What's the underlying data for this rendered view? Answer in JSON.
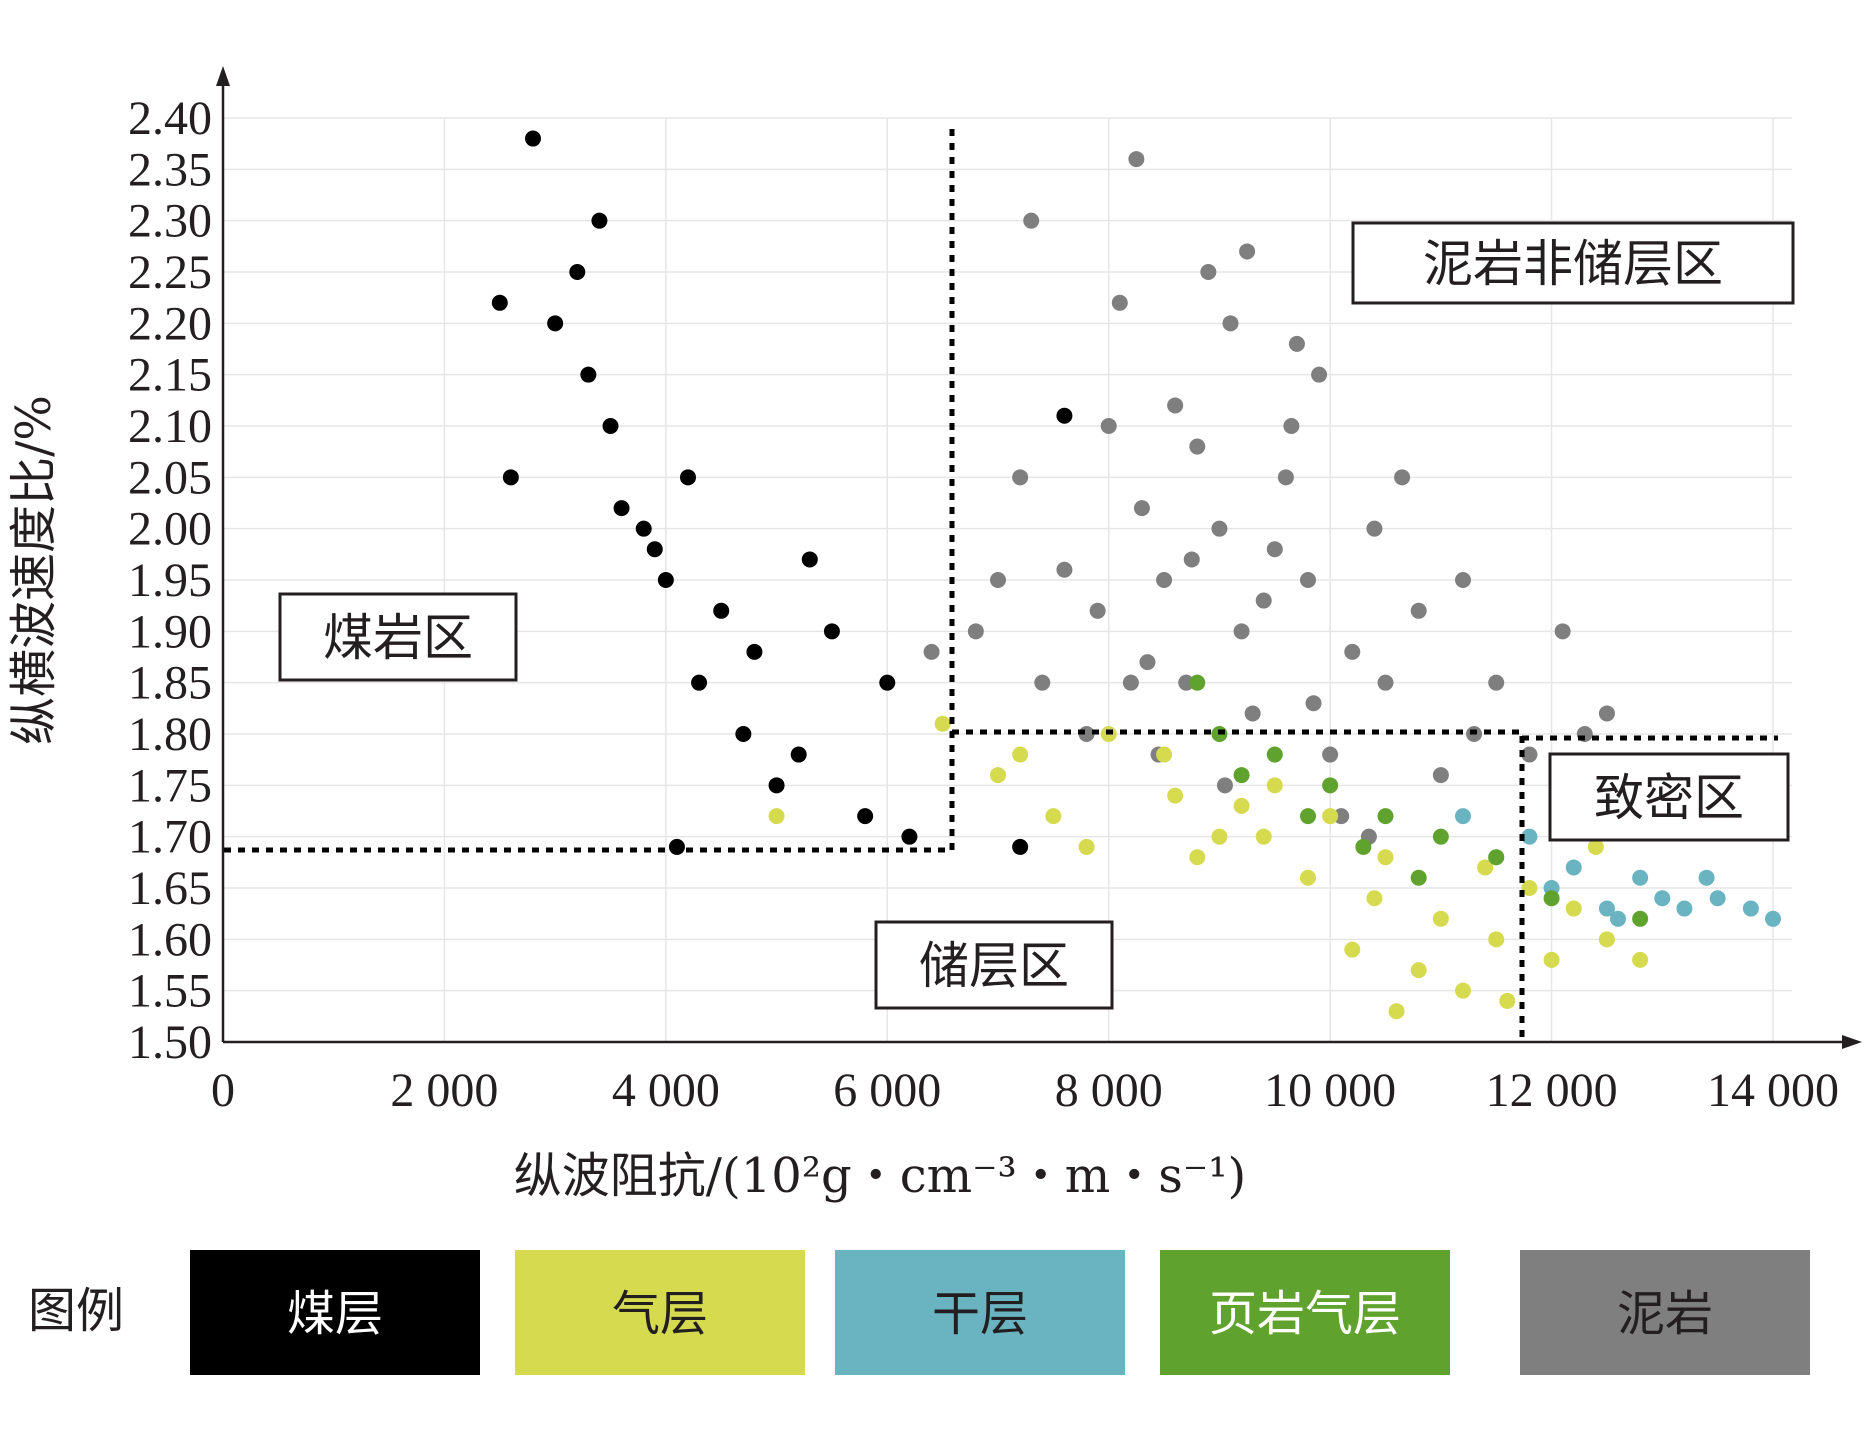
{
  "chart_data": {
    "type": "scatter",
    "xlabel": "纵波阻抗/(10²g・cm⁻³・m・s⁻¹)",
    "ylabel": "纵横波速度比/%",
    "xlim": [
      0,
      14200
    ],
    "ylim": [
      1.5,
      2.4
    ],
    "x_ticks": [
      0,
      2000,
      4000,
      6000,
      8000,
      10000,
      12000,
      14000
    ],
    "x_tick_labels": [
      "0",
      "2 000",
      "4 000",
      "6 000",
      "8 000",
      "10 000",
      "12 000",
      "14 000"
    ],
    "y_ticks": [
      1.5,
      1.55,
      1.6,
      1.65,
      1.7,
      1.75,
      1.8,
      1.85,
      1.9,
      1.95,
      2.0,
      2.05,
      2.1,
      2.15,
      2.2,
      2.25,
      2.3,
      2.35,
      2.4
    ],
    "y_tick_labels": [
      "1.50",
      "1.55",
      "1.60",
      "1.65",
      "1.70",
      "1.75",
      "1.80",
      "1.85",
      "1.90",
      "1.95",
      "2.00",
      "2.05",
      "2.10",
      "2.15",
      "2.20",
      "2.25",
      "2.30",
      "2.35",
      "2.40"
    ],
    "grid": true,
    "legend_position": "bottom",
    "legend_title": "图例",
    "series": [
      {
        "name": "泥岩",
        "color": "#7f7f7f",
        "x": [
          9000,
          8500,
          9500,
          8800,
          9200,
          9800,
          8300,
          10200,
          9600,
          8700,
          7600,
          9300,
          10500,
          8000,
          9900,
          9100,
          10800,
          11300,
          7200,
          8200,
          9400,
          10000,
          11500,
          12500,
          8900,
          9700,
          10400,
          8600,
          7000,
          6800,
          6400,
          7400,
          7800,
          9050,
          8450,
          10100,
          11000,
          11800,
          12100,
          8100,
          7300,
          9250,
          9650,
          10650,
          8750,
          8350,
          9850,
          10350,
          11200,
          12300,
          7900,
          8250
        ],
        "y": [
          2.0,
          1.95,
          1.98,
          2.08,
          1.9,
          1.95,
          2.02,
          1.88,
          2.05,
          1.85,
          1.96,
          1.82,
          1.85,
          2.1,
          2.15,
          2.2,
          1.92,
          1.8,
          2.05,
          1.85,
          1.93,
          1.78,
          1.85,
          1.82,
          2.25,
          2.18,
          2.0,
          2.12,
          1.95,
          1.9,
          1.88,
          1.85,
          1.8,
          1.75,
          1.78,
          1.72,
          1.76,
          1.78,
          1.9,
          2.22,
          2.3,
          2.27,
          2.1,
          2.05,
          1.97,
          1.87,
          1.83,
          1.7,
          1.95,
          1.8,
          1.92,
          2.36
        ]
      },
      {
        "name": "气层",
        "color": "#d6da4e",
        "x": [
          10500,
          11000,
          11500,
          12000,
          10000,
          9500,
          9000,
          8500,
          11200,
          11800,
          12500,
          10800,
          9800,
          9200,
          8800,
          8000,
          7500,
          7000,
          6500,
          5000,
          10200,
          11400,
          12200,
          12800,
          10600,
          9400,
          8600,
          7800,
          7200,
          11600,
          12400,
          10400
        ],
        "y": [
          1.68,
          1.62,
          1.6,
          1.58,
          1.72,
          1.75,
          1.7,
          1.78,
          1.55,
          1.65,
          1.6,
          1.57,
          1.66,
          1.73,
          1.68,
          1.8,
          1.72,
          1.76,
          1.81,
          1.72,
          1.59,
          1.67,
          1.63,
          1.58,
          1.53,
          1.7,
          1.74,
          1.69,
          1.78,
          1.54,
          1.69,
          1.64
        ]
      },
      {
        "name": "干层",
        "color": "#6ab4c2",
        "x": [
          12000,
          12500,
          13000,
          13500,
          14000,
          11500,
          12800,
          13200,
          11800,
          12200,
          13800,
          11200,
          12600,
          13400
        ],
        "y": [
          1.65,
          1.63,
          1.64,
          1.64,
          1.62,
          1.68,
          1.66,
          1.63,
          1.7,
          1.67,
          1.63,
          1.72,
          1.62,
          1.66
        ]
      },
      {
        "name": "页岩气层",
        "color": "#5fa32e",
        "x": [
          9000,
          9500,
          10000,
          10500,
          11000,
          11500,
          8800,
          9200,
          9800,
          10300,
          10800,
          12000,
          12800
        ],
        "y": [
          1.8,
          1.78,
          1.75,
          1.72,
          1.7,
          1.68,
          1.85,
          1.76,
          1.72,
          1.69,
          1.66,
          1.64,
          1.62
        ]
      },
      {
        "name": "煤层",
        "color": "#000000",
        "x": [
          2800,
          3200,
          3500,
          3800,
          4000,
          4200,
          4500,
          4800,
          5000,
          5500,
          6000,
          3000,
          3300,
          3600,
          3900,
          4300,
          4700,
          5200,
          5800,
          2500,
          2600,
          6200,
          4100,
          3400,
          5300,
          7200,
          7600
        ],
        "y": [
          2.38,
          2.25,
          2.1,
          2.0,
          1.95,
          2.05,
          1.92,
          1.88,
          1.75,
          1.9,
          1.85,
          2.2,
          2.15,
          2.02,
          1.98,
          1.85,
          1.8,
          1.78,
          1.72,
          2.22,
          2.05,
          1.7,
          1.69,
          2.3,
          1.97,
          1.69,
          2.11
        ]
      }
    ],
    "annotations": [
      {
        "text": "泥岩非储层区"
      },
      {
        "text": "煤岩区"
      },
      {
        "text": "致密区"
      },
      {
        "text": "储层区"
      }
    ]
  }
}
